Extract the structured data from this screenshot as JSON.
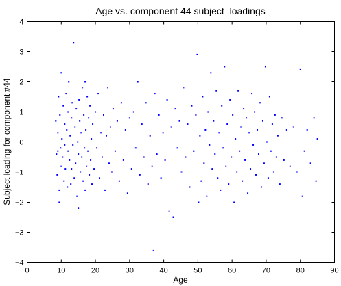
{
  "chart_data": {
    "type": "scatter",
    "title": "Age vs. component 44 subject–loadings",
    "xlabel": "Age",
    "ylabel": "Subject loading for component #44",
    "xlim": [
      0,
      90
    ],
    "ylim": [
      -4,
      4
    ],
    "xticks": [
      "0",
      "10",
      "20",
      "30",
      "40",
      "50",
      "60",
      "70",
      "80",
      "90"
    ],
    "yticks": [
      "−4",
      "−3",
      "−2",
      "−1",
      "0",
      "1",
      "2",
      "3",
      "4"
    ],
    "grid": false,
    "reference_line": {
      "y": 0
    },
    "marker_color": "#0000ff",
    "line_color": "#808080",
    "series": [
      {
        "points": [
          [
            8.4,
            0.7
          ],
          [
            8.6,
            -0.4
          ],
          [
            8.8,
            -1.1
          ],
          [
            9.0,
            0.3
          ],
          [
            9.0,
            -0.3
          ],
          [
            9.2,
            1.5
          ],
          [
            9.4,
            -1.6
          ],
          [
            9.4,
            -2.0
          ],
          [
            9.6,
            0.9
          ],
          [
            9.8,
            -0.2
          ],
          [
            10.0,
            -0.8
          ],
          [
            10.0,
            2.3
          ],
          [
            10.2,
            0.1
          ],
          [
            10.4,
            -0.5
          ],
          [
            10.6,
            1.2
          ],
          [
            10.8,
            -1.3
          ],
          [
            11.0,
            0.6
          ],
          [
            11.0,
            -0.1
          ],
          [
            11.2,
            -0.9
          ],
          [
            11.4,
            1.6
          ],
          [
            11.6,
            0.4
          ],
          [
            11.8,
            -1.5
          ],
          [
            12.0,
            1.0
          ],
          [
            12.0,
            -0.3
          ],
          [
            12.2,
            2.0
          ],
          [
            12.4,
            -0.6
          ],
          [
            12.6,
            0.2
          ],
          [
            12.8,
            -1.4
          ],
          [
            13.0,
            0.8
          ],
          [
            13.0,
            -0.9
          ],
          [
            13.2,
            1.3
          ],
          [
            13.4,
            -0.1
          ],
          [
            13.6,
            3.3
          ],
          [
            13.8,
            -1.2
          ],
          [
            14.0,
            0.5
          ],
          [
            14.2,
            -0.7
          ],
          [
            14.4,
            1.1
          ],
          [
            14.6,
            -1.8
          ],
          [
            14.8,
            0.0
          ],
          [
            15.0,
            -0.4
          ],
          [
            15.0,
            -2.2
          ],
          [
            15.2,
            1.4
          ],
          [
            15.4,
            0.7
          ],
          [
            15.6,
            -1.0
          ],
          [
            15.8,
            0.3
          ],
          [
            16.0,
            -0.5
          ],
          [
            16.2,
            1.8
          ],
          [
            16.4,
            -1.3
          ],
          [
            16.6,
            0.9
          ],
          [
            16.8,
            -0.2
          ],
          [
            17.0,
            2.0
          ],
          [
            17.0,
            -1.6
          ],
          [
            17.2,
            0.4
          ],
          [
            17.4,
            -0.8
          ],
          [
            17.6,
            1.5
          ],
          [
            17.8,
            -0.3
          ],
          [
            18.0,
            0.8
          ],
          [
            18.2,
            -1.1
          ],
          [
            18.4,
            1.2
          ],
          [
            18.6,
            -0.6
          ],
          [
            18.8,
            0.1
          ],
          [
            19.0,
            -1.4
          ],
          [
            19.2,
            0.6
          ],
          [
            19.6,
            -0.9
          ],
          [
            20.0,
            1.0
          ],
          [
            20.4,
            -0.2
          ],
          [
            20.8,
            1.6
          ],
          [
            21.2,
            -1.2
          ],
          [
            21.6,
            0.3
          ],
          [
            22.0,
            -0.5
          ],
          [
            22.4,
            0.9
          ],
          [
            22.8,
            -1.6
          ],
          [
            23.2,
            0.2
          ],
          [
            23.6,
            1.8
          ],
          [
            24.0,
            -0.7
          ],
          [
            24.4,
            0.5
          ],
          [
            24.8,
            -1.0
          ],
          [
            25.2,
            1.1
          ],
          [
            25.8,
            -0.3
          ],
          [
            26.4,
            0.7
          ],
          [
            27.0,
            -1.3
          ],
          [
            27.6,
            1.3
          ],
          [
            28.2,
            -0.6
          ],
          [
            28.8,
            0.4
          ],
          [
            29.4,
            -1.7
          ],
          [
            30.0,
            0.8
          ],
          [
            30.6,
            -0.9
          ],
          [
            31.2,
            1.0
          ],
          [
            31.8,
            -0.2
          ],
          [
            32.4,
            2.0
          ],
          [
            33.0,
            -1.1
          ],
          [
            33.6,
            0.6
          ],
          [
            34.2,
            -0.5
          ],
          [
            34.8,
            1.3
          ],
          [
            35.4,
            -1.4
          ],
          [
            36.0,
            0.2
          ],
          [
            36.6,
            -0.8
          ],
          [
            37.0,
            -3.6
          ],
          [
            37.4,
            1.6
          ],
          [
            38.0,
            -0.4
          ],
          [
            38.6,
            0.9
          ],
          [
            39.2,
            -1.2
          ],
          [
            39.8,
            0.3
          ],
          [
            40.4,
            -0.6
          ],
          [
            41.0,
            1.4
          ],
          [
            41.6,
            -2.3
          ],
          [
            42.2,
            0.5
          ],
          [
            42.8,
            -2.5
          ],
          [
            43.4,
            1.1
          ],
          [
            44.0,
            -0.2
          ],
          [
            44.6,
            0.7
          ],
          [
            45.2,
            -1.0
          ],
          [
            45.8,
            1.8
          ],
          [
            46.4,
            -0.5
          ],
          [
            47.0,
            0.6
          ],
          [
            47.6,
            -1.5
          ],
          [
            48.2,
            1.2
          ],
          [
            48.8,
            -0.3
          ],
          [
            49.4,
            0.9
          ],
          [
            49.8,
            2.9
          ],
          [
            50.2,
            -2.0
          ],
          [
            50.6,
            0.2
          ],
          [
            51.0,
            -1.3
          ],
          [
            51.4,
            1.5
          ],
          [
            51.8,
            -0.7
          ],
          [
            52.2,
            0.4
          ],
          [
            52.6,
            -1.8
          ],
          [
            53.0,
            1.0
          ],
          [
            53.4,
            -0.1
          ],
          [
            53.8,
            2.3
          ],
          [
            54.2,
            -0.9
          ],
          [
            54.6,
            0.7
          ],
          [
            55.0,
            -0.4
          ],
          [
            55.4,
            1.7
          ],
          [
            55.8,
            -1.2
          ],
          [
            56.2,
            0.3
          ],
          [
            56.6,
            -1.6
          ],
          [
            57.0,
            1.2
          ],
          [
            57.4,
            -0.2
          ],
          [
            57.8,
            2.5
          ],
          [
            58.2,
            -0.8
          ],
          [
            58.6,
            0.6
          ],
          [
            59.0,
            -1.4
          ],
          [
            59.4,
            1.4
          ],
          [
            59.8,
            -0.5
          ],
          [
            60.2,
            0.9
          ],
          [
            60.6,
            -2.0
          ],
          [
            61.0,
            0.1
          ],
          [
            61.4,
            -1.0
          ],
          [
            61.8,
            1.7
          ],
          [
            62.2,
            -0.3
          ],
          [
            62.6,
            0.5
          ],
          [
            63.0,
            -1.3
          ],
          [
            63.4,
            1.1
          ],
          [
            63.8,
            -0.6
          ],
          [
            64.2,
            0.8
          ],
          [
            64.6,
            -1.7
          ],
          [
            65.0,
            0.3
          ],
          [
            65.4,
            -0.9
          ],
          [
            65.8,
            1.6
          ],
          [
            66.2,
            -0.1
          ],
          [
            66.6,
            1.0
          ],
          [
            67.0,
            -1.1
          ],
          [
            67.4,
            0.4
          ],
          [
            67.8,
            -0.4
          ],
          [
            68.2,
            1.3
          ],
          [
            68.6,
            -1.5
          ],
          [
            69.0,
            0.7
          ],
          [
            69.4,
            -0.7
          ],
          [
            69.8,
            2.5
          ],
          [
            70.2,
            0.0
          ],
          [
            70.6,
            -1.2
          ],
          [
            71.0,
            1.5
          ],
          [
            71.4,
            -0.3
          ],
          [
            71.8,
            0.6
          ],
          [
            72.2,
            -1.0
          ],
          [
            72.6,
            0.9
          ],
          [
            73.0,
            -0.5
          ],
          [
            73.4,
            0.2
          ],
          [
            74.0,
            -1.4
          ],
          [
            74.6,
            0.8
          ],
          [
            75.2,
            -0.6
          ],
          [
            76.0,
            0.4
          ],
          [
            77.0,
            -0.8
          ],
          [
            78.0,
            0.5
          ],
          [
            79.0,
            -1.0
          ],
          [
            80.0,
            2.4
          ],
          [
            80.6,
            -1.8
          ],
          [
            81.2,
            -0.3
          ],
          [
            82.0,
            0.4
          ],
          [
            83.0,
            -0.7
          ],
          [
            84.0,
            0.8
          ],
          [
            84.6,
            -1.3
          ],
          [
            85.0,
            0.1
          ]
        ]
      }
    ]
  }
}
